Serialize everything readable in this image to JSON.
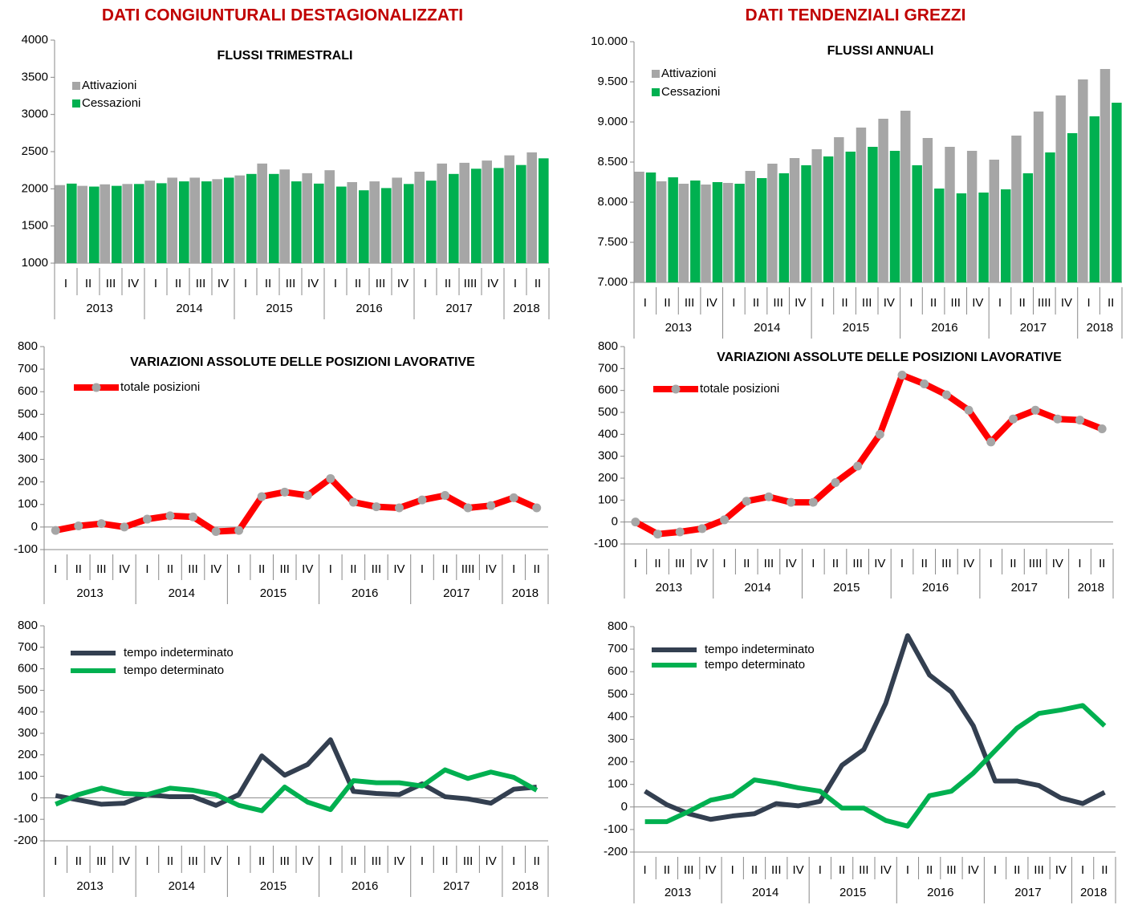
{
  "headings": [
    "DATI CONGIUNTURALI DESTAGIONALIZZATI",
    "DATI TENDENZIALI GREZZI"
  ],
  "chart_data": [
    {
      "type": "bar",
      "title": "FLUSSI TRIMESTRALI",
      "categories": [
        "I",
        "II",
        "III",
        "IV",
        "I",
        "II",
        "III",
        "IV",
        "I",
        "II",
        "III",
        "IV",
        "I",
        "II",
        "III",
        "IV",
        "I",
        "II",
        "IIII",
        "IV",
        "I",
        "II"
      ],
      "years": [
        "2013",
        "2014",
        "2015",
        "2016",
        "2017",
        "2018"
      ],
      "series": [
        {
          "name": "Attivazioni",
          "color": "#a6a6a6",
          "values": [
            2050,
            2040,
            2060,
            2065,
            2110,
            2150,
            2150,
            2130,
            2180,
            2340,
            2260,
            2210,
            2250,
            2090,
            2100,
            2150,
            2230,
            2340,
            2350,
            2380,
            2450,
            2490
          ]
        },
        {
          "name": "Cessazioni",
          "color": "#00b050",
          "values": [
            2070,
            2030,
            2040,
            2065,
            2075,
            2100,
            2100,
            2150,
            2200,
            2200,
            2100,
            2070,
            2030,
            1980,
            2010,
            2065,
            2110,
            2200,
            2270,
            2280,
            2320,
            2410
          ]
        }
      ],
      "ylim": [
        1000,
        4000
      ],
      "yticks": [
        1000,
        1500,
        2000,
        2500,
        3000,
        3500,
        4000
      ],
      "legend": "upper left"
    },
    {
      "type": "bar",
      "title": "FLUSSI ANNUALI",
      "categories": [
        "I",
        "II",
        "III",
        "IV",
        "I",
        "II",
        "III",
        "IV",
        "I",
        "II",
        "III",
        "IV",
        "I",
        "II",
        "III",
        "IV",
        "I",
        "II",
        "IIII",
        "IV",
        "I",
        "II"
      ],
      "years": [
        "2013",
        "2014",
        "2015",
        "2016",
        "2017",
        "2018"
      ],
      "series": [
        {
          "name": "Attivazioni",
          "color": "#a6a6a6",
          "values": [
            8380,
            8260,
            8230,
            8220,
            8240,
            8390,
            8480,
            8550,
            8660,
            8810,
            8930,
            9040,
            9140,
            8800,
            8690,
            8640,
            8530,
            8830,
            9130,
            9330,
            9530,
            9660
          ]
        },
        {
          "name": "Cessazioni",
          "color": "#00b050",
          "values": [
            8370,
            8310,
            8270,
            8250,
            8230,
            8300,
            8360,
            8460,
            8570,
            8630,
            8690,
            8640,
            8460,
            8170,
            8110,
            8120,
            8160,
            8360,
            8620,
            8860,
            9070,
            9240
          ]
        }
      ],
      "ylim": [
        7000,
        10000
      ],
      "yticks": [
        {
          "value": 7000,
          "label": "7.000"
        },
        {
          "value": 7500,
          "label": "7.500"
        },
        {
          "value": 8000,
          "label": "8.000"
        },
        {
          "value": 8500,
          "label": "8.500"
        },
        {
          "value": 9000,
          "label": "9.000"
        },
        {
          "value": 9500,
          "label": "9.500"
        },
        {
          "value": 10000,
          "label": "10.000"
        }
      ],
      "legend": "upper left"
    },
    {
      "type": "line",
      "title": "VARIAZIONI ASSOLUTE DELLE POSIZIONI LAVORATIVE",
      "categories": [
        "I",
        "II",
        "III",
        "IV",
        "I",
        "II",
        "III",
        "IV",
        "I",
        "II",
        "III",
        "IV",
        "I",
        "II",
        "III",
        "IV",
        "I",
        "II",
        "IIII",
        "IV",
        "I",
        "II"
      ],
      "years": [
        "2013",
        "2014",
        "2015",
        "2016",
        "2017",
        "2018"
      ],
      "series": [
        {
          "name": "totale posizioni",
          "color": "#ff0000",
          "marker_color": "#a6a6a6",
          "values": [
            -15,
            5,
            15,
            0,
            35,
            50,
            45,
            -20,
            -15,
            135,
            155,
            140,
            215,
            110,
            90,
            85,
            120,
            140,
            85,
            95,
            130,
            85
          ]
        }
      ],
      "ylim": [
        -100,
        800
      ],
      "yticks": [
        -100,
        0,
        100,
        200,
        300,
        400,
        500,
        600,
        700,
        800
      ],
      "legend": "upper left"
    },
    {
      "type": "line",
      "title": "VARIAZIONI  ASSOLUTE DELLE POSIZIONI LAVORATIVE",
      "categories": [
        "I",
        "II",
        "III",
        "IV",
        "I",
        "II",
        "III",
        "IV",
        "I",
        "II",
        "III",
        "IV",
        "I",
        "II",
        "III",
        "IV",
        "I",
        "II",
        "IIII",
        "IV",
        "I",
        "II"
      ],
      "years": [
        "2013",
        "2014",
        "2015",
        "2016",
        "2017",
        "2018"
      ],
      "series": [
        {
          "name": "totale posizioni",
          "color": "#ff0000",
          "marker_color": "#a6a6a6",
          "values": [
            0,
            -55,
            -45,
            -30,
            10,
            95,
            115,
            90,
            90,
            180,
            255,
            400,
            670,
            630,
            580,
            510,
            365,
            470,
            510,
            470,
            465,
            425
          ]
        }
      ],
      "ylim": [
        -100,
        800
      ],
      "yticks": [
        -100,
        0,
        100,
        200,
        300,
        400,
        500,
        600,
        700,
        800
      ],
      "legend": "upper left"
    },
    {
      "type": "line",
      "categories": [
        "I",
        "II",
        "III",
        "IV",
        "I",
        "II",
        "III",
        "IV",
        "I",
        "II",
        "III",
        "IV",
        "I",
        "II",
        "III",
        "IV",
        "I",
        "II",
        "III",
        "IV",
        "I",
        "II"
      ],
      "years": [
        "2013",
        "2014",
        "2015",
        "2016",
        "2017",
        "2018"
      ],
      "series": [
        {
          "name": "tempo indeterminato",
          "color": "#333f50",
          "values": [
            10,
            -10,
            -30,
            -25,
            15,
            5,
            5,
            -35,
            15,
            195,
            105,
            155,
            270,
            30,
            20,
            15,
            65,
            5,
            -5,
            -25,
            40,
            50
          ]
        },
        {
          "name": "tempo determinato",
          "color": "#00b050",
          "values": [
            -30,
            15,
            45,
            20,
            15,
            45,
            35,
            15,
            -35,
            -60,
            50,
            -20,
            -55,
            80,
            70,
            70,
            55,
            130,
            90,
            120,
            95,
            35
          ]
        }
      ],
      "ylim": [
        -200,
        800
      ],
      "yticks": [
        -200,
        -100,
        0,
        100,
        200,
        300,
        400,
        500,
        600,
        700,
        800
      ],
      "legend": "upper left"
    },
    {
      "type": "line",
      "categories": [
        "I",
        "II",
        "III",
        "IV",
        "I",
        "II",
        "III",
        "IV",
        "I",
        "II",
        "III",
        "IV",
        "I",
        "II",
        "III",
        "IV",
        "I",
        "II",
        "III",
        "IV",
        "I",
        "II"
      ],
      "years": [
        "2013",
        "2014",
        "2015",
        "2016",
        "2017",
        "2018"
      ],
      "series": [
        {
          "name": "tempo indeterminato",
          "color": "#333f50",
          "values": [
            70,
            10,
            -30,
            -55,
            -40,
            -30,
            15,
            5,
            25,
            185,
            255,
            460,
            760,
            585,
            510,
            360,
            115,
            115,
            95,
            40,
            15,
            65
          ]
        },
        {
          "name": "tempo determinato",
          "color": "#00b050",
          "values": [
            -65,
            -65,
            -20,
            30,
            50,
            120,
            105,
            85,
            70,
            -5,
            -5,
            -60,
            -85,
            50,
            70,
            150,
            250,
            350,
            415,
            430,
            450,
            360
          ]
        }
      ],
      "ylim": [
        -200,
        800
      ],
      "yticks": [
        -200,
        -100,
        0,
        100,
        200,
        300,
        400,
        500,
        600,
        700,
        800
      ],
      "legend": "upper left"
    }
  ]
}
